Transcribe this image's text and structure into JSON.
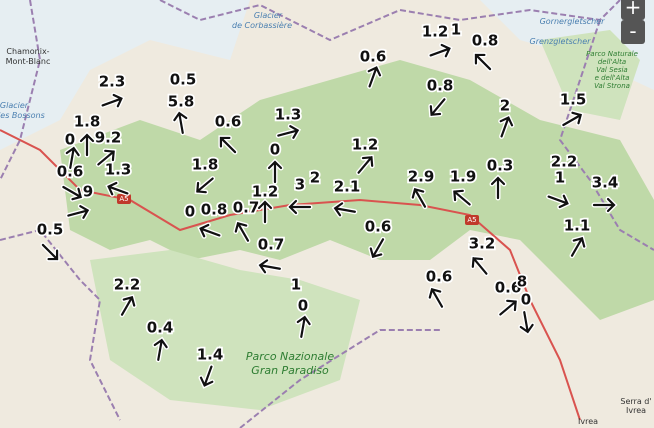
{
  "wind_labels": [
    2.3,
    0.5,
    5.8,
    1.8,
    0,
    9.2,
    1.3,
    0.6,
    9,
    0.5,
    0.6,
    1.3,
    0,
    1.8,
    0,
    0.8,
    0.7,
    1.2,
    3,
    2,
    2.1,
    1.2,
    0.6,
    0.7,
    0.6,
    1,
    0,
    2.2,
    0.4,
    1.4,
    1.2,
    1,
    0.8,
    0.8,
    2.9,
    1.9,
    2,
    0.3,
    1.5,
    2.2,
    1,
    3.4,
    1.1,
    3.2,
    0.6,
    0.6,
    8,
    0
  ],
  "map_labels": {
    "chamonix_1": "Chamonix-",
    "chamonix_2": "Mont-Blanc",
    "glacier_1": "Glacier",
    "glacier_2": "de Corbassière",
    "bossons_1": "Glacier",
    "bossons_2": "des Bossons",
    "gorner": "Gornergletscher",
    "grenz": "Grenzgletscher",
    "sesia_1": "Parco Naturale",
    "sesia_2": "dell'Alta",
    "sesia_3": "Val Sesia",
    "sesia_4": "e dell'Alta",
    "sesia_5": "Val Strona",
    "paradiso_1": "Parco Nazionale",
    "paradiso_2": "Gran Paradiso",
    "road_1": "A5",
    "road_2": "A5",
    "serra_1": "Serra d'",
    "serra_2": "Ivrea",
    "ivrea": "Ivrea"
  },
  "zoom": {
    "in": "+",
    "out": "-"
  }
}
